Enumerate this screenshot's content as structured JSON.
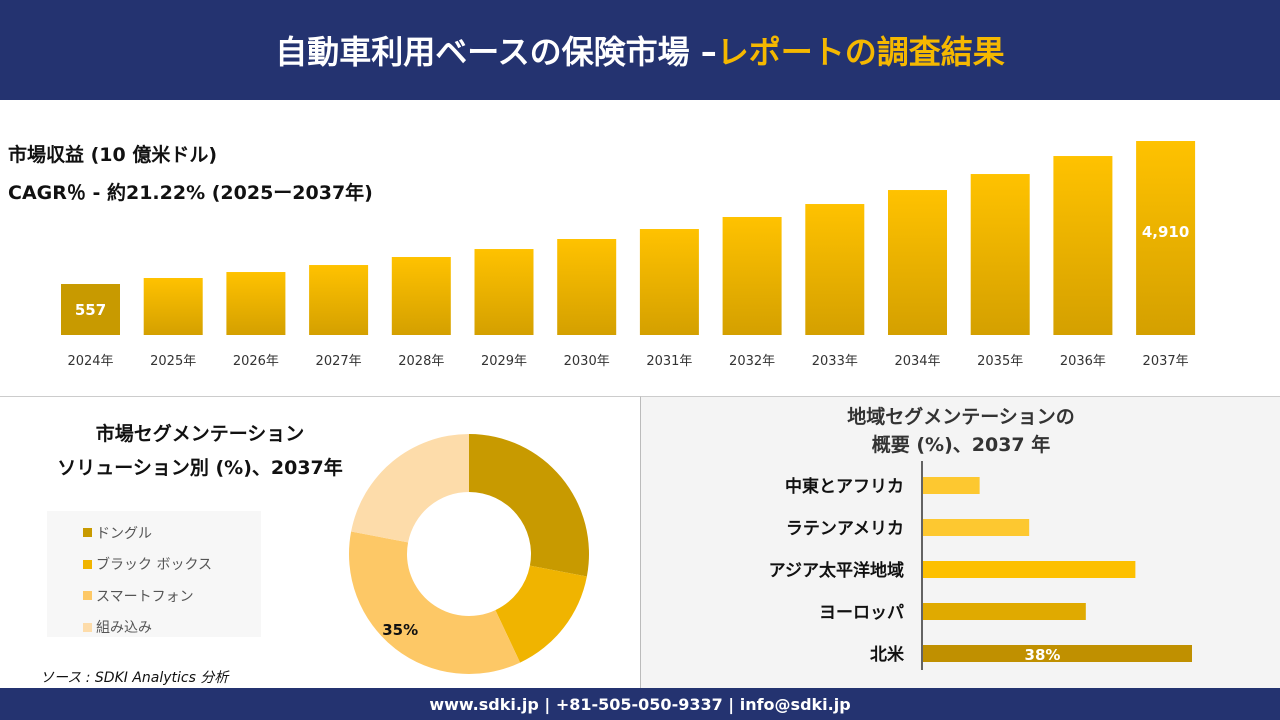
{
  "header": {
    "title_main": "自動車利用ベースの保険市場 –",
    "title_accent": "レポートの調査結果"
  },
  "revenue": {
    "label": "市場収益 (10 億米ドル)",
    "cagr": "CAGR％ - 約21.22% (2025ー2037年)"
  },
  "chart_data": [
    {
      "type": "bar",
      "categories": [
        "2024年",
        "2025年",
        "2026年",
        "2027年",
        "2028年",
        "2029年",
        "2030年",
        "2031年",
        "2032年",
        "2033年",
        "2034年",
        "2035年",
        "2036年",
        "2037年"
      ],
      "values": [
        557,
        740,
        922,
        1135,
        1379,
        1622,
        1927,
        2231,
        2597,
        2992,
        3418,
        3905,
        4453,
        4910
      ],
      "data_labels": {
        "0": "557",
        "13": "4,910"
      },
      "ylim": [
        -1000,
        5000
      ],
      "grid": false,
      "xlabel": "",
      "ylabel": ""
    },
    {
      "type": "pie",
      "title": "市場セグメンテーション ソリューション別 (%)、2037年",
      "labels": [
        "ドングル",
        "ブラック ボックス",
        "スマートフォン",
        "組み込み"
      ],
      "values": [
        28,
        15,
        35,
        22
      ],
      "colors": [
        "#c89a00",
        "#f0b400",
        "#fdc866",
        "#fddcaa"
      ],
      "data_labels": {
        "2": "35%"
      },
      "legend": "left",
      "hole": true
    },
    {
      "type": "bar",
      "orientation": "horizontal",
      "title": "地域セグメンテーションの 概要 (%)、2037 年",
      "categories": [
        "中東とアフリカ",
        "ラテンアメリカ",
        "アジア太平洋地域",
        "ヨーロッパ",
        "北米"
      ],
      "values": [
        8,
        15,
        30,
        23,
        38
      ],
      "colors": [
        "#fdc830",
        "#fdc830",
        "#fdc000",
        "#e0aa00",
        "#c09000"
      ],
      "data_labels": {
        "4": "38%"
      }
    }
  ],
  "pie": {
    "title1": "市場セグメンテーション",
    "title2": "ソリューション別 (%)、2037年"
  },
  "region": {
    "title1": "地域セグメンテーションの",
    "title2": "概要 (%)、2037 年"
  },
  "source": "ソース : SDKI Analytics 分析",
  "footer": "www.sdki.jp | +81-505-050-9337 | info@sdki.jp"
}
